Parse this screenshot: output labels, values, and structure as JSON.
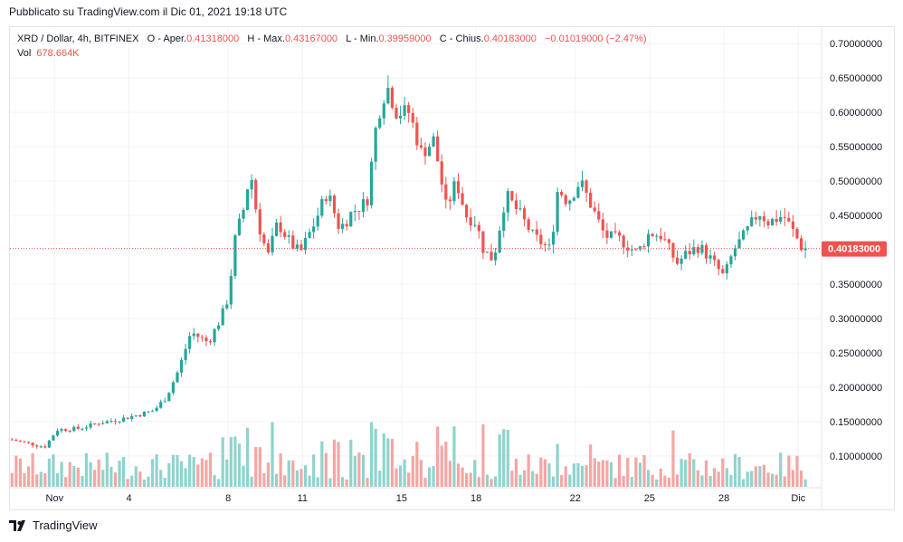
{
  "header": {
    "published": "Pubblicato su TradingView.com il Dic 01, 2021 19:18 UTC"
  },
  "legend": {
    "symbol": "XRD / Dollar, 4h, BITFINEX",
    "open_label": "O - Aper.",
    "open": "0.41318000",
    "high_label": "H - Max.",
    "high": "0.43167000",
    "low_label": "L - Min.",
    "low": "0.39959000",
    "close_label": "C - Chius.",
    "close": "0.40183000",
    "change": "−0.01019000 (−2.47%)",
    "vol_label": "Vol",
    "vol": "678.664K"
  },
  "brand": {
    "name": "TradingView"
  },
  "colors": {
    "up": "#26a69a",
    "down": "#ef5350",
    "up_volume": "#8fd3cd",
    "down_volume": "#f4a6a4",
    "grid": "#f0f3fa",
    "text": "#131722"
  },
  "chart_data": {
    "type": "candlestick",
    "symbol": "XRD / Dollar",
    "interval": "4h",
    "exchange": "BITFINEX",
    "y_ticks": [
      "0.70000000",
      "0.65000000",
      "0.60000000",
      "0.55000000",
      "0.50000000",
      "0.45000000",
      "0.40000000",
      "0.35000000",
      "0.30000000",
      "0.25000000",
      "0.20000000",
      "0.15000000",
      "0.10000000"
    ],
    "y_tick_values": [
      0.7,
      0.65,
      0.6,
      0.55,
      0.5,
      0.45,
      0.4,
      0.35,
      0.3,
      0.25,
      0.2,
      0.15,
      0.1
    ],
    "ylim": [
      0.055,
      0.724
    ],
    "x_ticks": [
      {
        "label": "Nov",
        "day": 1
      },
      {
        "label": "4",
        "day": 4
      },
      {
        "label": "8",
        "day": 8
      },
      {
        "label": "11",
        "day": 11
      },
      {
        "label": "15",
        "day": 15
      },
      {
        "label": "18",
        "day": 18
      },
      {
        "label": "22",
        "day": 22
      },
      {
        "label": "25",
        "day": 25
      },
      {
        "label": "28",
        "day": 28
      },
      {
        "label": "Dic",
        "day": 31
      }
    ],
    "x_range_days": [
      -0.8,
      31.9
    ],
    "last_price": "0.40183000",
    "last_price_value": 0.40183,
    "price_path": [
      [
        -0.8,
        0.124
      ],
      [
        0,
        0.118
      ],
      [
        0.6,
        0.113
      ],
      [
        1.1,
        0.138
      ],
      [
        2,
        0.14
      ],
      [
        2.8,
        0.148
      ],
      [
        3.6,
        0.153
      ],
      [
        4.4,
        0.16
      ],
      [
        5.0,
        0.166
      ],
      [
        5.5,
        0.185
      ],
      [
        6.0,
        0.225
      ],
      [
        6.5,
        0.28
      ],
      [
        7.2,
        0.265
      ],
      [
        7.7,
        0.3
      ],
      [
        8.0,
        0.33
      ],
      [
        8.3,
        0.42
      ],
      [
        8.6,
        0.455
      ],
      [
        8.9,
        0.515
      ],
      [
        9.2,
        0.44
      ],
      [
        9.6,
        0.39
      ],
      [
        10.0,
        0.44
      ],
      [
        10.5,
        0.41
      ],
      [
        10.9,
        0.395
      ],
      [
        11.5,
        0.44
      ],
      [
        12.0,
        0.485
      ],
      [
        12.5,
        0.43
      ],
      [
        13.0,
        0.455
      ],
      [
        13.6,
        0.47
      ],
      [
        14.0,
        0.59
      ],
      [
        14.4,
        0.64
      ],
      [
        14.8,
        0.6
      ],
      [
        15.3,
        0.6
      ],
      [
        15.8,
        0.54
      ],
      [
        16.3,
        0.56
      ],
      [
        16.8,
        0.46
      ],
      [
        17.2,
        0.5
      ],
      [
        17.6,
        0.45
      ],
      [
        18.0,
        0.44
      ],
      [
        18.3,
        0.4
      ],
      [
        18.7,
        0.385
      ],
      [
        19.2,
        0.48
      ],
      [
        19.8,
        0.45
      ],
      [
        20.3,
        0.42
      ],
      [
        21.0,
        0.4
      ],
      [
        21.3,
        0.49
      ],
      [
        21.7,
        0.47
      ],
      [
        22.2,
        0.5
      ],
      [
        22.7,
        0.46
      ],
      [
        23.2,
        0.42
      ],
      [
        23.8,
        0.415
      ],
      [
        24.5,
        0.395
      ],
      [
        25.0,
        0.425
      ],
      [
        25.5,
        0.42
      ],
      [
        26.1,
        0.38
      ],
      [
        26.5,
        0.395
      ],
      [
        27.0,
        0.405
      ],
      [
        27.5,
        0.385
      ],
      [
        28.0,
        0.36
      ],
      [
        28.4,
        0.4
      ],
      [
        28.8,
        0.42
      ],
      [
        29.4,
        0.455
      ],
      [
        29.8,
        0.44
      ],
      [
        30.4,
        0.45
      ],
      [
        30.9,
        0.42
      ],
      [
        31.1,
        0.405
      ],
      [
        31.25,
        0.40183
      ]
    ]
  }
}
